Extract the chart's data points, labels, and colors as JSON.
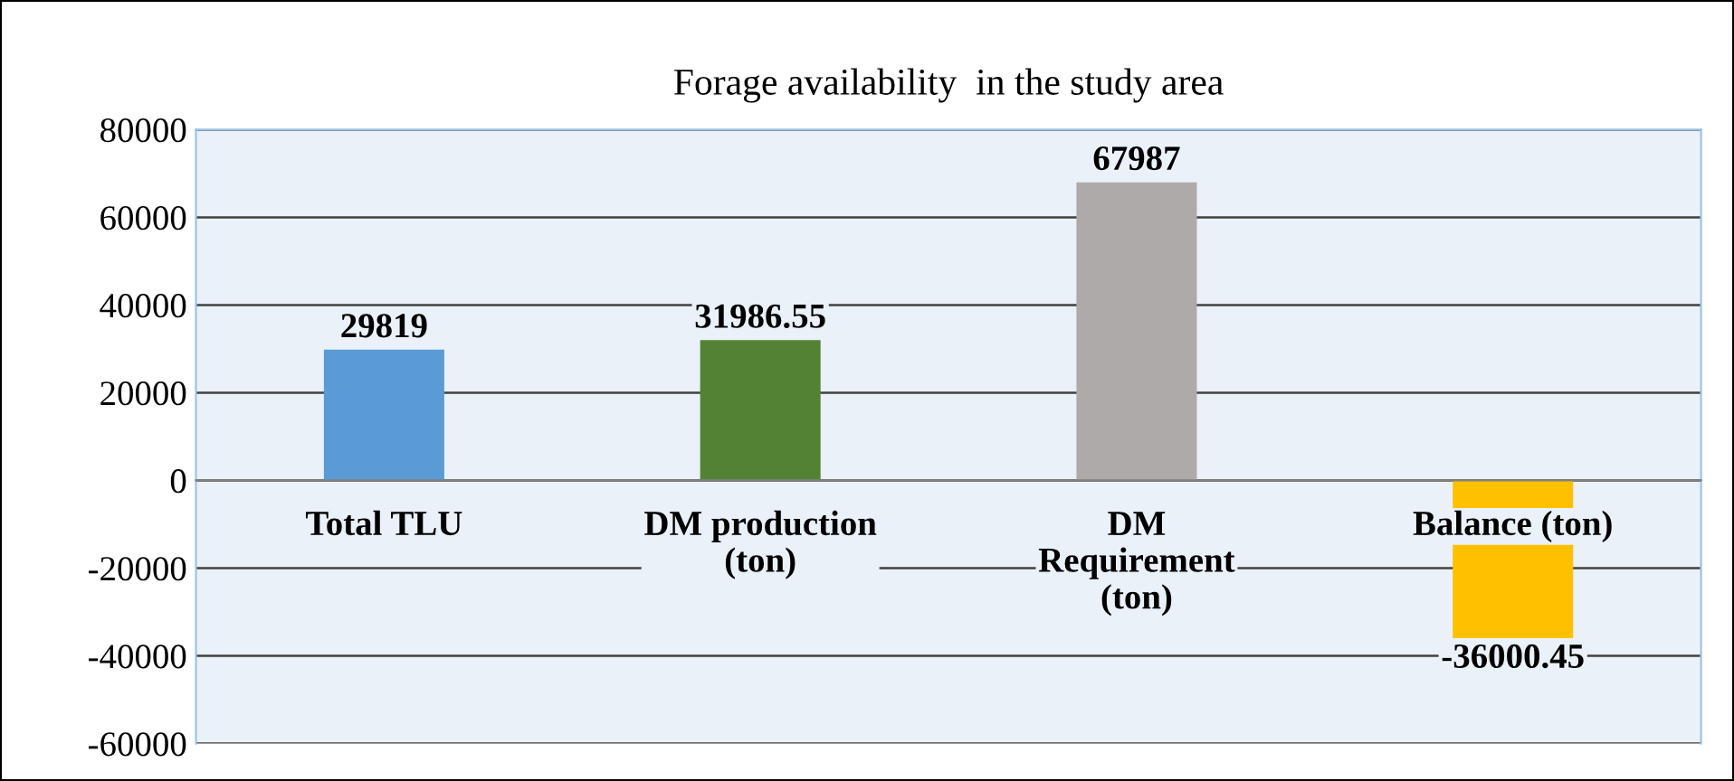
{
  "chart_data": {
    "type": "bar",
    "title": "Forage availability  in the study area",
    "categories": [
      "Total TLU",
      "DM production\n(ton)",
      "DM\nRequirement\n(ton)",
      "Balance (ton)"
    ],
    "values": [
      29819,
      31986.55,
      67987,
      -36000.45
    ],
    "colors": [
      "#5b9bd5",
      "#548235",
      "#aeaaaa",
      "#ffc000"
    ],
    "data_labels": true,
    "ylim": [
      -60000,
      80000
    ],
    "yticks": [
      -60000,
      -40000,
      -20000,
      0,
      20000,
      40000,
      60000,
      80000
    ],
    "grid": "y"
  }
}
